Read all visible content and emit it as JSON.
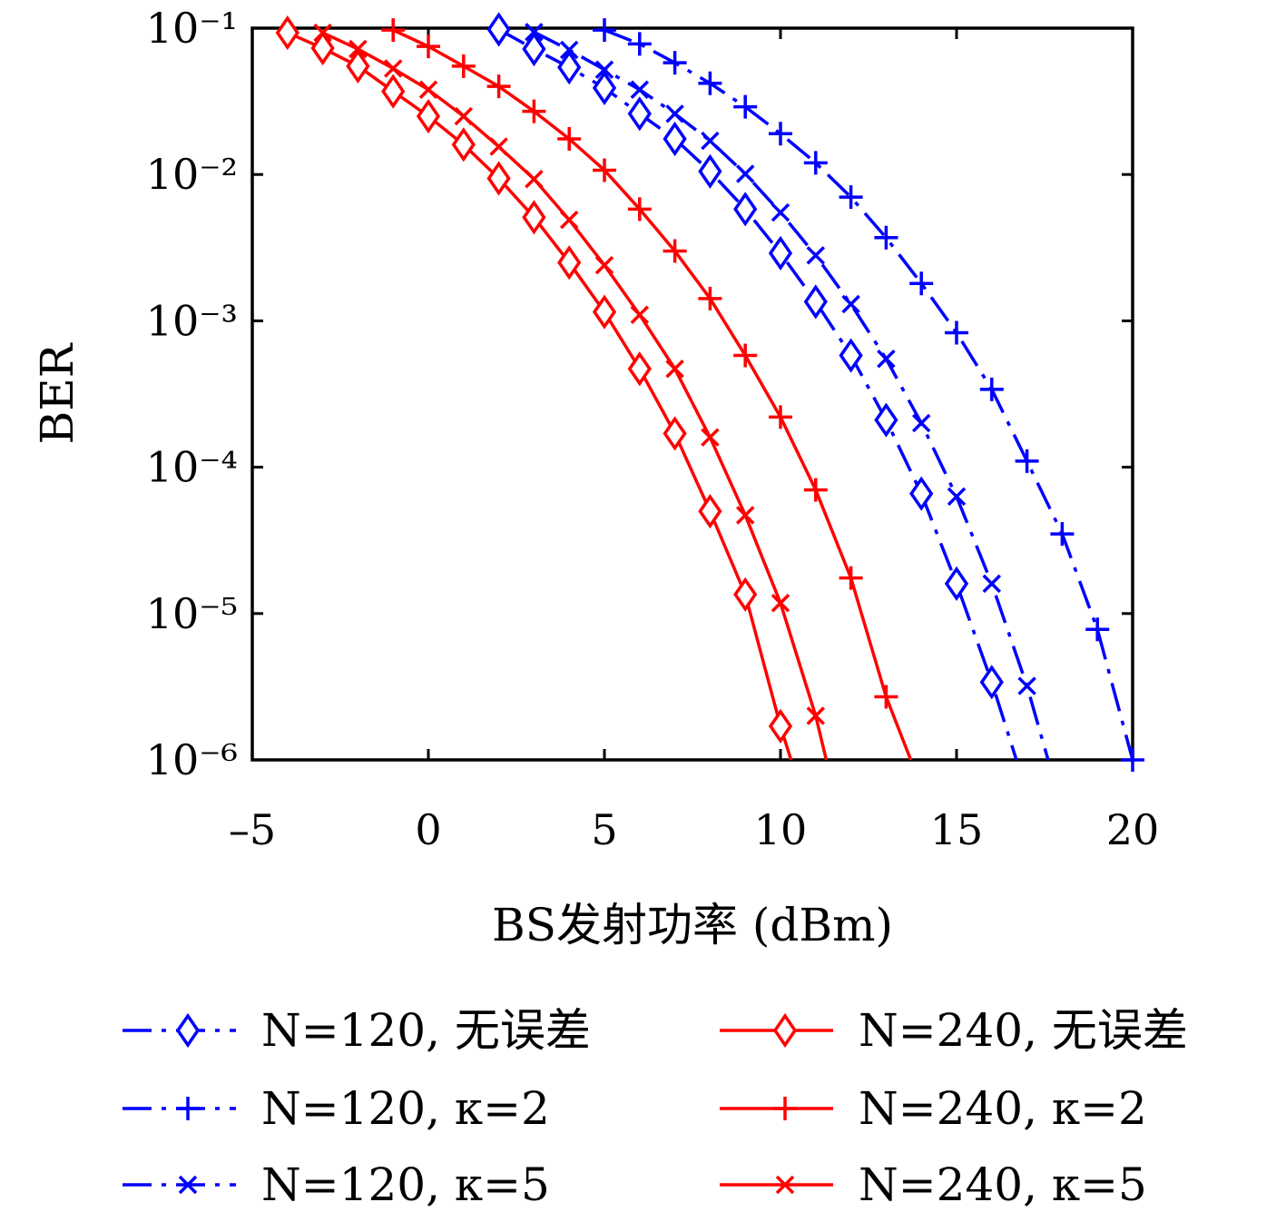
{
  "chart_data": {
    "type": "line",
    "title": "",
    "xlabel": "BS发射功率 (dBm)",
    "ylabel": "BER",
    "xlim": [
      -5,
      20
    ],
    "ylim": [
      1e-06,
      0.1
    ],
    "yscale": "log",
    "grid": false,
    "legend_position": "bottom",
    "x_ticks": [
      -5,
      0,
      5,
      10,
      15,
      20
    ],
    "x_tick_labels": [
      "–5",
      "0",
      "5",
      "10",
      "15",
      "20"
    ],
    "y_ticks": [
      -1,
      -2,
      -3,
      -4,
      -5,
      -6
    ],
    "y_tick_labels": [
      "10⁻¹",
      "10⁻²",
      "10⁻³",
      "10⁻⁴",
      "10⁻⁵",
      "10⁻⁶"
    ],
    "series": [
      {
        "name": "N=120, 无误差",
        "color": "#0000ff",
        "dash": "dashdot",
        "marker": "diamond",
        "key": "n120_ideal",
        "x": [
          2,
          3,
          4,
          5,
          6,
          7,
          8,
          9,
          10,
          11,
          12,
          13,
          14,
          15,
          16,
          16.7
        ],
        "y": [
          0.098,
          0.072,
          0.054,
          0.039,
          0.026,
          0.0175,
          0.0105,
          0.0058,
          0.0029,
          0.00135,
          0.00058,
          0.00021,
          6.6e-05,
          1.6e-05,
          3.4e-06,
          1e-06
        ]
      },
      {
        "name": "N=120, κ=2",
        "color": "#0000ff",
        "dash": "dashdot",
        "marker": "plus",
        "key": "n120_k2",
        "x": [
          5,
          6,
          7,
          8,
          9,
          10,
          11,
          12,
          13,
          14,
          15,
          16,
          17,
          18,
          19,
          20
        ],
        "y": [
          0.097,
          0.078,
          0.058,
          0.042,
          0.029,
          0.019,
          0.012,
          0.007,
          0.0037,
          0.0018,
          0.00083,
          0.00034,
          0.00011,
          3.5e-05,
          7.8e-06,
          1e-06
        ]
      },
      {
        "name": "N=120, κ=5",
        "color": "#0000ff",
        "dash": "dashdot",
        "marker": "x",
        "key": "n120_k5",
        "x": [
          3,
          4,
          5,
          6,
          7,
          8,
          9,
          10,
          11,
          12,
          13,
          14,
          15,
          16,
          17,
          17.6
        ],
        "y": [
          0.094,
          0.071,
          0.052,
          0.038,
          0.026,
          0.017,
          0.0101,
          0.0055,
          0.0028,
          0.0013,
          0.00055,
          0.0002,
          6.3e-05,
          1.6e-05,
          3.2e-06,
          1e-06
        ]
      },
      {
        "name": "N=240, 无误差",
        "color": "#ff0000",
        "dash": "solid",
        "marker": "diamond",
        "key": "n240_ideal",
        "x": [
          -4,
          -3,
          -2,
          -1,
          0,
          1,
          2,
          3,
          4,
          5,
          6,
          7,
          8,
          9,
          10,
          10.3
        ],
        "y": [
          0.093,
          0.073,
          0.055,
          0.037,
          0.025,
          0.016,
          0.0094,
          0.0051,
          0.0025,
          0.00115,
          0.00047,
          0.00017,
          5e-05,
          1.35e-05,
          1.7e-06,
          1e-06
        ]
      },
      {
        "name": "N=240, κ=2",
        "color": "#ff0000",
        "dash": "solid",
        "marker": "plus",
        "key": "n240_k2",
        "x": [
          -1,
          0,
          1,
          2,
          3,
          4,
          5,
          6,
          7,
          8,
          9,
          10,
          11,
          12,
          13,
          13.7
        ],
        "y": [
          0.097,
          0.075,
          0.055,
          0.04,
          0.027,
          0.0175,
          0.0107,
          0.0058,
          0.003,
          0.00142,
          0.00058,
          0.00022,
          7e-05,
          1.75e-05,
          2.7e-06,
          1e-06
        ]
      },
      {
        "name": "N=240, κ=5",
        "color": "#ff0000",
        "dash": "solid",
        "marker": "x",
        "key": "n240_k5",
        "x": [
          -3,
          -2,
          -1,
          0,
          1,
          2,
          3,
          4,
          5,
          6,
          7,
          8,
          9,
          10,
          11,
          11.3
        ],
        "y": [
          0.093,
          0.072,
          0.053,
          0.038,
          0.025,
          0.0155,
          0.0093,
          0.0049,
          0.0024,
          0.0011,
          0.00047,
          0.00016,
          4.7e-05,
          1.18e-05,
          2e-06,
          1e-06
        ]
      }
    ],
    "legend_order": [
      "n120_ideal",
      "n240_ideal",
      "n120_k2",
      "n240_k2",
      "n120_k5",
      "n240_k5"
    ]
  }
}
